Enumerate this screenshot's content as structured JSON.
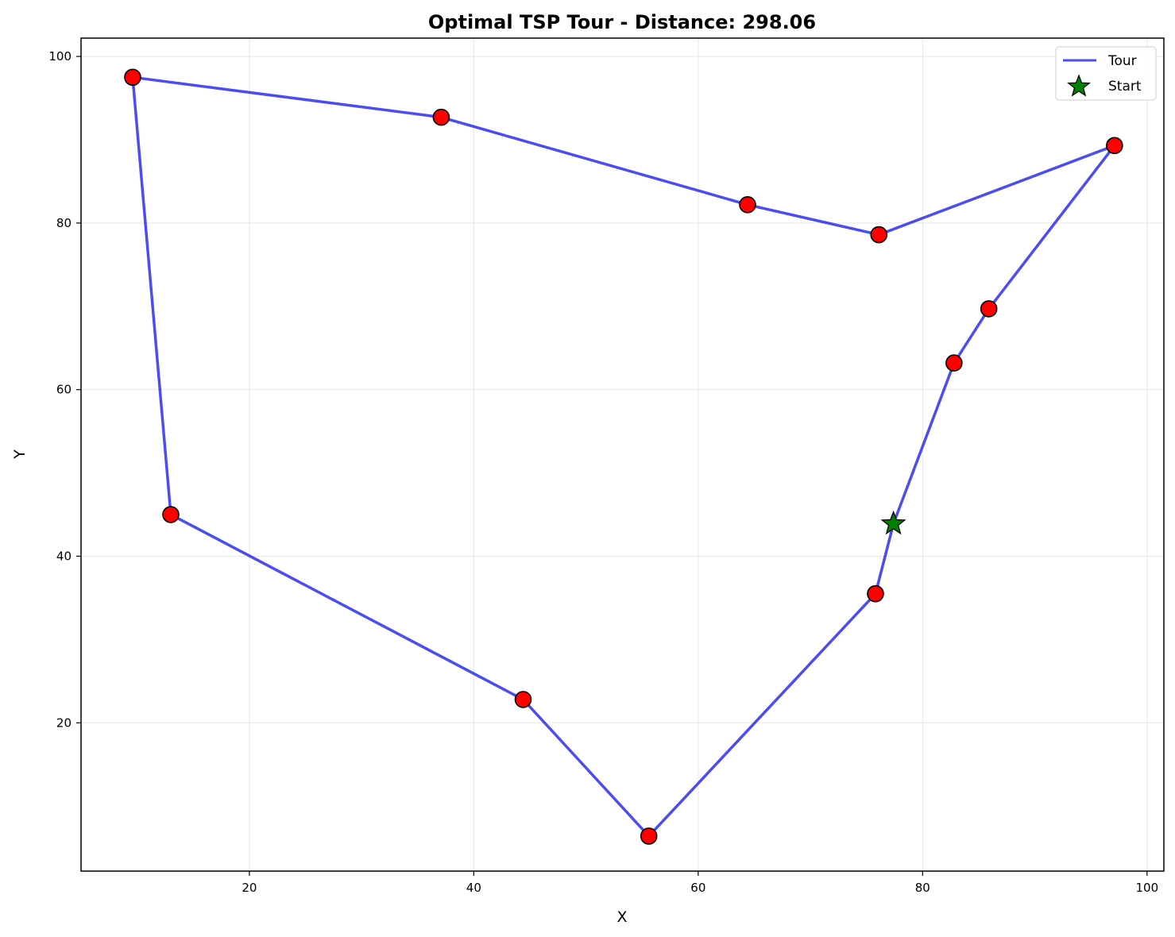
{
  "chart_data": {
    "type": "line",
    "title": "Optimal TSP Tour - Distance: 298.06",
    "xlabel": "X",
    "ylabel": "Y",
    "xlim": [
      5,
      101.5
    ],
    "ylim": [
      2.2,
      102.2
    ],
    "xticks": [
      20,
      40,
      60,
      80,
      100
    ],
    "yticks": [
      20,
      40,
      60,
      80,
      100
    ],
    "grid": true,
    "legend_position": "top-right",
    "series": [
      {
        "name": "Tour",
        "kind": "line",
        "color": "#0000ee",
        "x": [
          77.4,
          82.8,
          85.9,
          97.1,
          76.1,
          64.4,
          37.1,
          9.6,
          13.0,
          44.4,
          55.6,
          75.8,
          77.4
        ],
        "y": [
          43.9,
          63.2,
          69.7,
          89.3,
          78.6,
          82.2,
          92.7,
          97.5,
          45.0,
          22.8,
          6.4,
          35.5,
          43.9
        ]
      },
      {
        "name": "Start",
        "kind": "marker",
        "marker": "star",
        "color": "#008000",
        "x": [
          77.4
        ],
        "y": [
          43.9
        ]
      }
    ],
    "cities": {
      "marker": "circle",
      "color": "#ff0000",
      "x": [
        82.8,
        85.9,
        97.1,
        76.1,
        64.4,
        37.1,
        9.6,
        13.0,
        44.4,
        55.6,
        75.8
      ],
      "y": [
        63.2,
        69.7,
        89.3,
        78.6,
        82.2,
        92.7,
        97.5,
        45.0,
        22.8,
        6.4,
        35.5
      ]
    }
  }
}
